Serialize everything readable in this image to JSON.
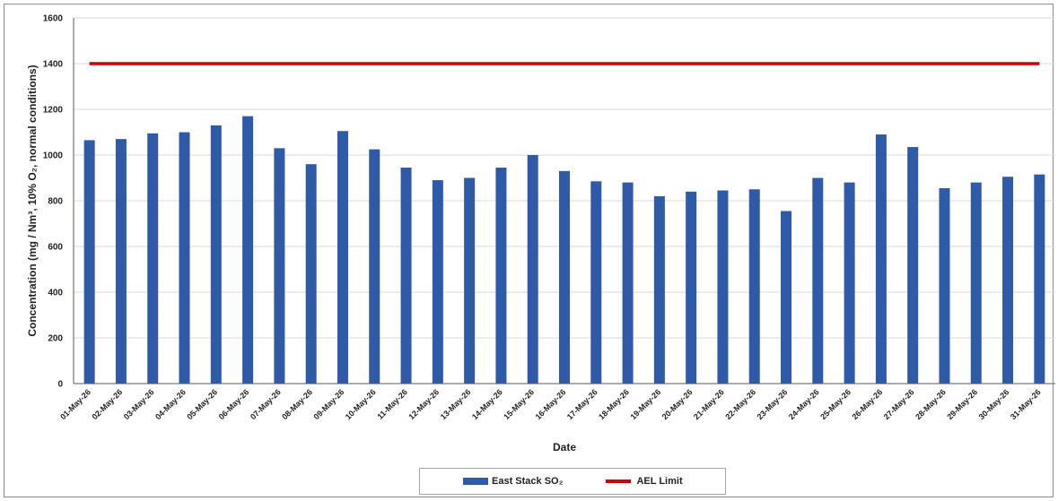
{
  "colors": {
    "bar": "#2e5aa8",
    "limit": "#cc0000",
    "grid": "#d9d9d9",
    "axis": "#595959"
  },
  "chart_data": {
    "type": "bar",
    "xlabel": "Date",
    "ylabel": "Concentration (mg / Nm³, 10% O₂, normal conditions)",
    "ylim": [
      0,
      1600
    ],
    "yticks": [
      0,
      200,
      400,
      600,
      800,
      1000,
      1200,
      1400,
      1600
    ],
    "grid": true,
    "legend_position": "bottom",
    "categories": [
      "01-May-26",
      "02-May-26",
      "03-May-26",
      "04-May-26",
      "05-May-26",
      "06-May-26",
      "07-May-26",
      "08-May-26",
      "09-May-26",
      "10-May-26",
      "11-May-26",
      "12-May-26",
      "13-May-26",
      "14-May-26",
      "15-May-26",
      "16-May-26",
      "17-May-26",
      "18-May-26",
      "19-May-26",
      "20-May-26",
      "21-May-26",
      "22-May-26",
      "23-May-26",
      "24-May-26",
      "25-May-26",
      "26-May-26",
      "27-May-26",
      "28-May-26",
      "29-May-26",
      "30-May-26",
      "31-May-26"
    ],
    "series": [
      {
        "name": "East Stack SO₂",
        "kind": "bar",
        "values": [
          1065,
          1070,
          1095,
          1100,
          1130,
          1170,
          1030,
          960,
          1105,
          1025,
          945,
          890,
          900,
          945,
          1000,
          930,
          885,
          880,
          820,
          840,
          845,
          850,
          755,
          900,
          880,
          1090,
          1035,
          855,
          880,
          905,
          915
        ]
      },
      {
        "name": "AEL Limit",
        "kind": "line",
        "values": [
          1400,
          1400,
          1400,
          1400,
          1400,
          1400,
          1400,
          1400,
          1400,
          1400,
          1400,
          1400,
          1400,
          1400,
          1400,
          1400,
          1400,
          1400,
          1400,
          1400,
          1400,
          1400,
          1400,
          1400,
          1400,
          1400,
          1400,
          1400,
          1400,
          1400,
          1400
        ]
      }
    ]
  }
}
